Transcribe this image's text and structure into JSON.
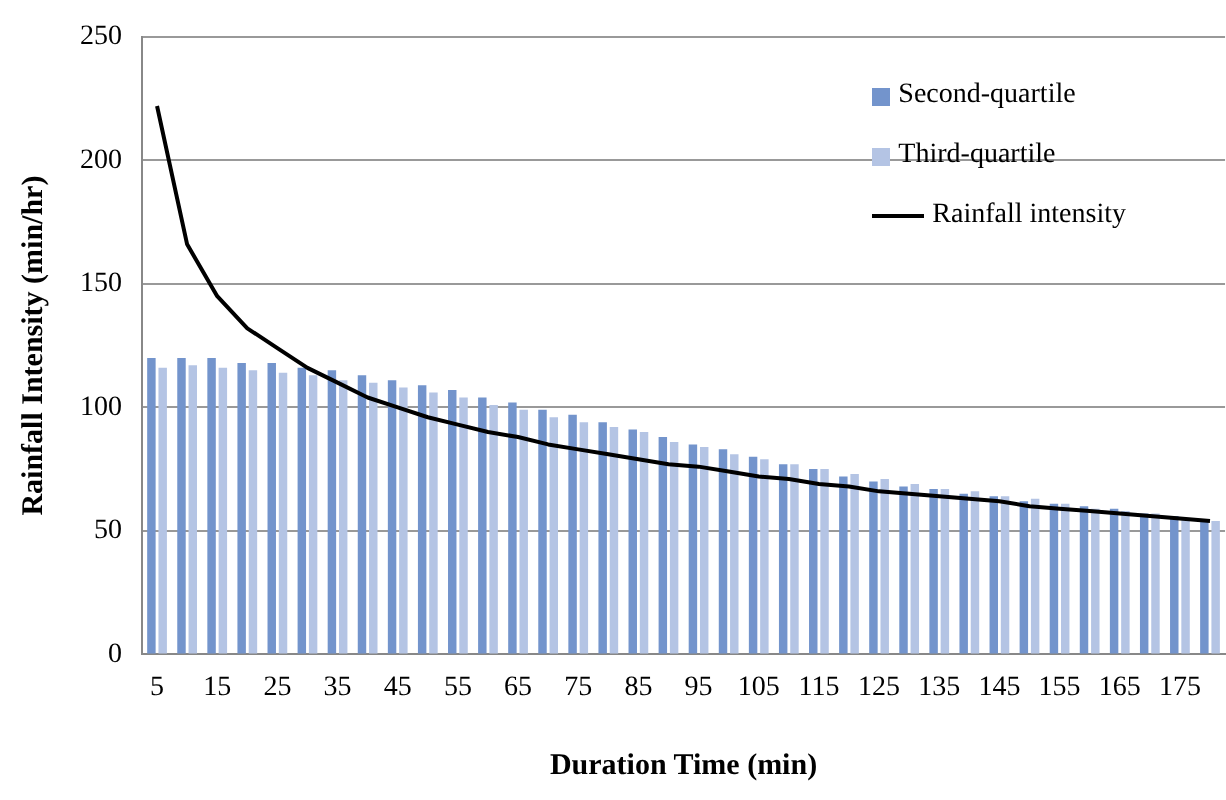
{
  "chart_data": {
    "type": "bar",
    "xlabel": "Duration Time (min)",
    "ylabel": "Rainfall Intensity (min/hr)",
    "categories": [
      "5",
      null,
      "15",
      null,
      "25",
      null,
      "35",
      null,
      "45",
      null,
      "55",
      null,
      "65",
      null,
      "75",
      null,
      "85",
      null,
      "95",
      null,
      "105",
      null,
      "115",
      null,
      "125",
      null,
      "135",
      null,
      "145",
      null,
      "155",
      null,
      "165",
      null,
      "175",
      null
    ],
    "series": [
      {
        "name": "Second-quartile",
        "color": "#7394cc",
        "values": [
          120,
          120,
          120,
          118,
          118,
          116,
          115,
          113,
          111,
          109,
          107,
          104,
          102,
          99,
          97,
          94,
          91,
          88,
          85,
          83,
          80,
          77,
          75,
          72,
          70,
          68,
          67,
          65,
          64,
          62,
          61,
          60,
          59,
          57,
          56,
          54
        ]
      },
      {
        "name": "Third-quartile",
        "color": "#b4c4e4",
        "values": [
          116,
          117,
          116,
          115,
          114,
          113,
          111,
          110,
          108,
          106,
          104,
          101,
          99,
          96,
          94,
          92,
          90,
          86,
          84,
          81,
          79,
          77,
          75,
          73,
          71,
          69,
          67,
          66,
          64,
          63,
          61,
          59,
          58,
          57,
          55,
          54
        ]
      },
      {
        "name": "Rainfall intensity",
        "type": "line",
        "color": "#000000",
        "values": [
          222,
          166,
          145,
          132,
          124,
          116,
          110,
          104,
          100,
          96,
          93,
          90,
          88,
          85,
          83,
          81,
          79,
          77,
          76,
          74,
          72,
          71,
          69,
          68,
          66,
          65,
          64,
          63,
          62,
          60,
          59,
          58,
          57,
          56,
          55,
          54
        ]
      }
    ],
    "ylim": [
      0,
      250
    ],
    "yticks": [
      0,
      50,
      100,
      150,
      200,
      250
    ],
    "grid": "y",
    "legend": "top right",
    "marker": "none",
    "line_style": "solid"
  }
}
